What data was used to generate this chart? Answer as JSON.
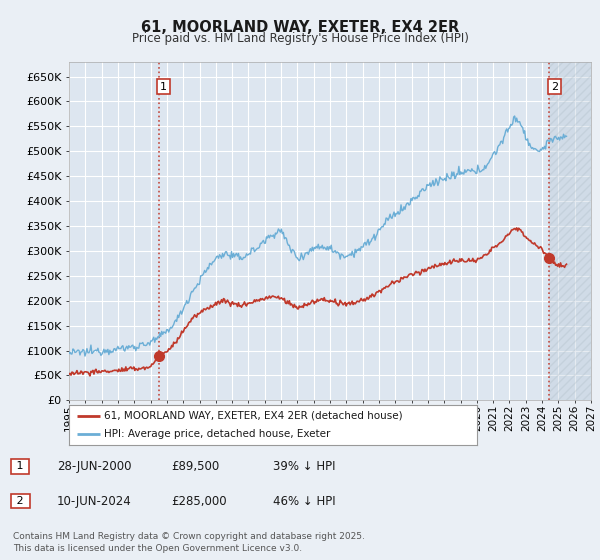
{
  "title": "61, MOORLAND WAY, EXETER, EX4 2ER",
  "subtitle": "Price paid vs. HM Land Registry's House Price Index (HPI)",
  "ylim": [
    0,
    680000
  ],
  "yticks": [
    0,
    50000,
    100000,
    150000,
    200000,
    250000,
    300000,
    350000,
    400000,
    450000,
    500000,
    550000,
    600000,
    650000
  ],
  "xlim_start": 1995.0,
  "xlim_end": 2027.0,
  "hpi_color": "#6baed6",
  "price_color": "#c0392b",
  "marker1_x": 2000.49,
  "marker1_y": 89500,
  "marker2_x": 2024.44,
  "marker2_y": 285000,
  "legend_price_label": "61, MOORLAND WAY, EXETER, EX4 2ER (detached house)",
  "legend_hpi_label": "HPI: Average price, detached house, Exeter",
  "annotation1_date": "28-JUN-2000",
  "annotation1_price": "£89,500",
  "annotation1_hpi": "39% ↓ HPI",
  "annotation2_date": "10-JUN-2024",
  "annotation2_price": "£285,000",
  "annotation2_hpi": "46% ↓ HPI",
  "footnote": "Contains HM Land Registry data © Crown copyright and database right 2025.\nThis data is licensed under the Open Government Licence v3.0.",
  "bg_color": "#eaeff5",
  "plot_bg_color": "#dde6f0",
  "hatch_color": "#b8c8d8",
  "grid_color": "#ffffff"
}
